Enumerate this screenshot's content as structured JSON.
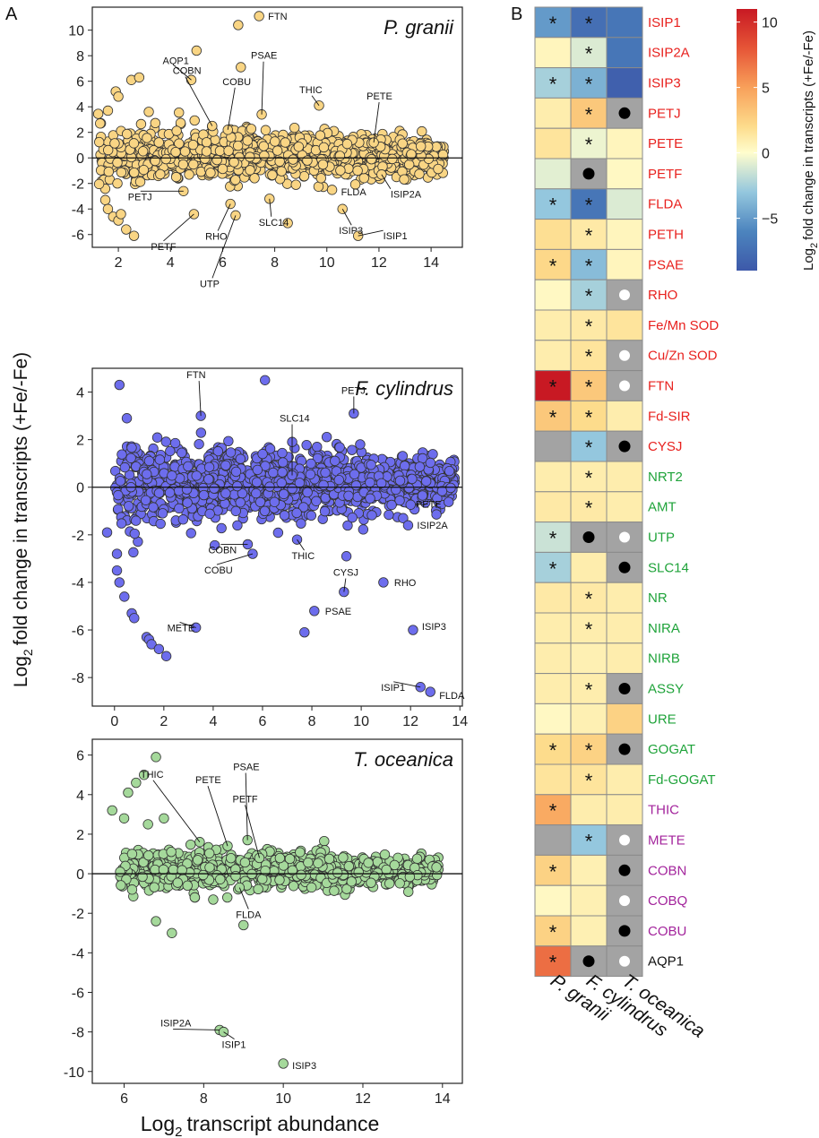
{
  "figure": {
    "panel_a_letter": "A",
    "panel_b_letter": "B",
    "ylabel_main": "fold change in transcripts (+Fe/-Fe)",
    "ylabel_prefix": "Log",
    "ylabel_sub": "2",
    "xlabel_main": "transcript abundance",
    "xlabel_prefix": "Log",
    "xlabel_sub": "2"
  },
  "chart_data": [
    {
      "type": "scatter",
      "title": "P. granii",
      "xlim": [
        1,
        15.2
      ],
      "ylim": [
        -7,
        11.8
      ],
      "xticks": [
        2,
        4,
        6,
        8,
        10,
        12,
        14
      ],
      "yticks": [
        -6,
        -4,
        -2,
        0,
        2,
        4,
        6,
        8,
        10
      ],
      "point_color": "#f9d584",
      "reference_line_y": 0,
      "cloud": {
        "count": 1100,
        "x_range": [
          1.2,
          14.5
        ],
        "y_spread": 1.7
      },
      "genes": [
        {
          "name": "FTN",
          "x": 7.4,
          "y": 11.1
        },
        {
          "name": "AQP1",
          "x": 4.8,
          "y": 6.1
        },
        {
          "name": "COBN",
          "x": 5.6,
          "y": 2.5
        },
        {
          "name": "COBU",
          "x": 6.2,
          "y": 2.2
        },
        {
          "name": "PSAE",
          "x": 7.5,
          "y": 3.4
        },
        {
          "name": "THIC",
          "x": 9.7,
          "y": 4.1
        },
        {
          "name": "PETE",
          "x": 11.8,
          "y": 1.2
        },
        {
          "name": "PETJ",
          "x": 4.5,
          "y": -2.6
        },
        {
          "name": "PETF",
          "x": 4.9,
          "y": -4.4
        },
        {
          "name": "RHO",
          "x": 6.3,
          "y": -3.6
        },
        {
          "name": "UTP",
          "x": 6.5,
          "y": -4.5
        },
        {
          "name": "SLC14",
          "x": 7.8,
          "y": -3.2
        },
        {
          "name": "FLDA",
          "x": 10.2,
          "y": -2.5
        },
        {
          "name": "ISIP3",
          "x": 10.6,
          "y": -4.0
        },
        {
          "name": "ISIP2A",
          "x": 12.1,
          "y": -1.3
        },
        {
          "name": "ISIP1",
          "x": 11.2,
          "y": -6.1
        }
      ],
      "extra_points": [
        {
          "x": 6.6,
          "y": 10.4
        },
        {
          "x": 5.0,
          "y": 8.4
        },
        {
          "x": 6.7,
          "y": 7.1
        },
        {
          "x": 2.5,
          "y": 6.1
        },
        {
          "x": 2.8,
          "y": 6.3
        },
        {
          "x": 1.9,
          "y": 5.2
        },
        {
          "x": 2.0,
          "y": 4.8
        },
        {
          "x": 1.6,
          "y": 3.7
        },
        {
          "x": 1.3,
          "y": 2.7
        },
        {
          "x": 1.5,
          "y": -3.3
        },
        {
          "x": 1.6,
          "y": -4.0
        },
        {
          "x": 1.8,
          "y": -4.6
        },
        {
          "x": 2.0,
          "y": -4.9
        },
        {
          "x": 2.3,
          "y": -5.6
        },
        {
          "x": 2.6,
          "y": -6.1
        },
        {
          "x": 2.1,
          "y": -4.4
        },
        {
          "x": 8.5,
          "y": -5.1
        }
      ]
    },
    {
      "type": "scatter",
      "title": "F. cylindrus",
      "xlim": [
        -0.9,
        14.1
      ],
      "ylim": [
        -9.2,
        5.0
      ],
      "xticks": [
        0,
        2,
        4,
        6,
        8,
        10,
        12,
        14
      ],
      "yticks": [
        -8,
        -6,
        -4,
        -2,
        0,
        2,
        4
      ],
      "point_color": "#6d6ded",
      "reference_line_y": 0,
      "cloud": {
        "count": 1400,
        "x_range": [
          0.0,
          13.8
        ],
        "y_spread": 1.25
      },
      "genes": [
        {
          "name": "FTN",
          "x": 3.5,
          "y": 3.0
        },
        {
          "name": "SLC14",
          "x": 7.2,
          "y": 0.5
        },
        {
          "name": "PETJ",
          "x": 9.7,
          "y": 3.1
        },
        {
          "name": "PETE",
          "x": 11.7,
          "y": -1.3
        },
        {
          "name": "ISIP2A",
          "x": 11.9,
          "y": -1.6
        },
        {
          "name": "COBN",
          "x": 5.4,
          "y": -2.4
        },
        {
          "name": "COBU",
          "x": 5.6,
          "y": -2.8
        },
        {
          "name": "THIC",
          "x": 7.4,
          "y": -2.2
        },
        {
          "name": "CYSJ",
          "x": 9.3,
          "y": -4.4
        },
        {
          "name": "RHO",
          "x": 10.9,
          "y": -4.0
        },
        {
          "name": "PSAE",
          "x": 8.1,
          "y": -5.2
        },
        {
          "name": "METE",
          "x": 3.3,
          "y": -5.9
        },
        {
          "name": "ISIP3",
          "x": 12.1,
          "y": -6.0
        },
        {
          "name": "ISIP1",
          "x": 12.4,
          "y": -8.4
        },
        {
          "name": "FLDA",
          "x": 12.8,
          "y": -8.6
        }
      ],
      "extra_points": [
        {
          "x": 0.2,
          "y": 4.3
        },
        {
          "x": 6.1,
          "y": 4.5
        },
        {
          "x": 0.5,
          "y": 2.9
        },
        {
          "x": 0.1,
          "y": -3.5
        },
        {
          "x": 0.2,
          "y": -4.0
        },
        {
          "x": 0.4,
          "y": -4.6
        },
        {
          "x": 0.7,
          "y": -5.3
        },
        {
          "x": 0.8,
          "y": -5.5
        },
        {
          "x": 1.3,
          "y": -6.3
        },
        {
          "x": 1.4,
          "y": -6.4
        },
        {
          "x": 1.5,
          "y": -6.6
        },
        {
          "x": 1.8,
          "y": -6.8
        },
        {
          "x": 2.1,
          "y": -7.1
        },
        {
          "x": 7.7,
          "y": -6.1
        },
        {
          "x": 9.4,
          "y": -2.9
        },
        {
          "x": -0.3,
          "y": -1.9
        },
        {
          "x": 0.1,
          "y": -2.8
        }
      ]
    },
    {
      "type": "scatter",
      "title": "T. oceanica",
      "xlim": [
        5.2,
        14.5
      ],
      "ylim": [
        -10.6,
        6.8
      ],
      "xticks": [
        6,
        8,
        10,
        12,
        14
      ],
      "yticks": [
        -10,
        -8,
        -6,
        -4,
        -2,
        0,
        2,
        4,
        6
      ],
      "point_color": "#a5d99b",
      "reference_line_y": 0,
      "cloud": {
        "count": 850,
        "x_range": [
          5.9,
          13.9
        ],
        "y_spread": 0.85
      },
      "genes": [
        {
          "name": "THIC",
          "x": 7.9,
          "y": 1.6
        },
        {
          "name": "PETE",
          "x": 8.6,
          "y": 1.4
        },
        {
          "name": "PSAE",
          "x": 9.1,
          "y": 1.7
        },
        {
          "name": "PETF",
          "x": 9.4,
          "y": 0.8
        },
        {
          "name": "FLDA",
          "x": 8.9,
          "y": -0.7
        },
        {
          "name": "ISIP2A",
          "x": 8.4,
          "y": -7.9
        },
        {
          "name": "ISIP1",
          "x": 8.5,
          "y": -8.0
        },
        {
          "name": "ISIP3",
          "x": 10.0,
          "y": -9.6
        }
      ],
      "extra_points": [
        {
          "x": 6.8,
          "y": 5.9
        },
        {
          "x": 6.5,
          "y": 5.0
        },
        {
          "x": 6.3,
          "y": 4.6
        },
        {
          "x": 6.1,
          "y": 4.1
        },
        {
          "x": 5.7,
          "y": 3.2
        },
        {
          "x": 6.0,
          "y": 2.8
        },
        {
          "x": 5.9,
          "y": 0.1
        },
        {
          "x": 6.2,
          "y": 1.0
        },
        {
          "x": 6.2,
          "y": -0.8
        },
        {
          "x": 6.8,
          "y": -2.4
        },
        {
          "x": 7.2,
          "y": -3.0
        },
        {
          "x": 9.0,
          "y": -2.6
        },
        {
          "x": 6.6,
          "y": 2.5
        },
        {
          "x": 7.0,
          "y": 2.8
        }
      ]
    },
    {
      "type": "heatmap",
      "columns": [
        "P. granii",
        "F. cylindrus",
        "T. oceanica"
      ],
      "colorbar_label": "fold change in transcripts (+Fe/-Fe)",
      "colorbar_label_prefix": "Log",
      "colorbar_label_sub": "2",
      "colorbar_ticks": [
        10,
        5,
        0,
        -5
      ],
      "color_range": [
        -9,
        11
      ],
      "missing_color": "#a3a3a3",
      "row_label_colors": {
        "iron": "#e8211e",
        "nitrogen": "#1fa33a",
        "vitamin": "#a3249c",
        "other": "#111111"
      },
      "rows": [
        {
          "gene": "ISIP1",
          "group": "iron",
          "values": [
            -5.0,
            -7.5,
            -7.0
          ],
          "marks": [
            "*",
            "*",
            ""
          ]
        },
        {
          "gene": "ISIP2A",
          "group": "iron",
          "values": [
            0.5,
            -1.0,
            -7.0
          ],
          "marks": [
            "",
            "*",
            ""
          ]
        },
        {
          "gene": "ISIP3",
          "group": "iron",
          "values": [
            -2.5,
            -4.0,
            -8.5
          ],
          "marks": [
            "*",
            "*",
            ""
          ]
        },
        {
          "gene": "PETJ",
          "group": "iron",
          "values": [
            1.0,
            3.0,
            null
          ],
          "marks": [
            "",
            "*",
            "black-dot"
          ]
        },
        {
          "gene": "PETE",
          "group": "iron",
          "values": [
            1.5,
            -0.5,
            0.5
          ],
          "marks": [
            "",
            "*",
            ""
          ]
        },
        {
          "gene": "PETF",
          "group": "iron",
          "values": [
            -0.8,
            null,
            0.3
          ],
          "marks": [
            "",
            "black-dot",
            ""
          ]
        },
        {
          "gene": "FLDA",
          "group": "iron",
          "values": [
            -3.0,
            -7.0,
            -1.0
          ],
          "marks": [
            "*",
            "*",
            ""
          ]
        },
        {
          "gene": "PETH",
          "group": "iron",
          "values": [
            1.8,
            1.2,
            0.5
          ],
          "marks": [
            "",
            "*",
            ""
          ]
        },
        {
          "gene": "PSAE",
          "group": "iron",
          "values": [
            2.2,
            -3.5,
            0.5
          ],
          "marks": [
            "*",
            "*",
            ""
          ]
        },
        {
          "gene": "RHO",
          "group": "iron",
          "values": [
            0.3,
            -2.5,
            null
          ],
          "marks": [
            "",
            "*",
            "white-dot"
          ]
        },
        {
          "gene": "Fe/Mn SOD",
          "group": "iron",
          "values": [
            1.0,
            1.2,
            1.5
          ],
          "marks": [
            "",
            "*",
            ""
          ]
        },
        {
          "gene": "Cu/Zn SOD",
          "group": "iron",
          "values": [
            1.0,
            1.5,
            null
          ],
          "marks": [
            "",
            "*",
            "white-dot"
          ]
        },
        {
          "gene": "FTN",
          "group": "iron",
          "values": [
            11.0,
            3.0,
            null
          ],
          "marks": [
            "*",
            "*",
            "white-dot"
          ]
        },
        {
          "gene": "Fd-SIR",
          "group": "iron",
          "values": [
            3.0,
            2.0,
            1.0
          ],
          "marks": [
            "*",
            "*",
            ""
          ]
        },
        {
          "gene": "CYSJ",
          "group": "iron",
          "values": [
            null,
            -3.0,
            null
          ],
          "marks": [
            "",
            "*",
            "black-dot"
          ]
        },
        {
          "gene": "NRT2",
          "group": "nitrogen",
          "values": [
            1.0,
            1.0,
            1.0
          ],
          "marks": [
            "",
            "*",
            ""
          ]
        },
        {
          "gene": "AMT",
          "group": "nitrogen",
          "values": [
            1.2,
            1.2,
            1.0
          ],
          "marks": [
            "",
            "*",
            ""
          ]
        },
        {
          "gene": "UTP",
          "group": "nitrogen",
          "values": [
            -1.5,
            null,
            null
          ],
          "marks": [
            "*",
            "black-dot",
            "white-dot"
          ]
        },
        {
          "gene": "SLC14",
          "group": "nitrogen",
          "values": [
            -2.5,
            1.0,
            null
          ],
          "marks": [
            "*",
            "",
            "black-dot"
          ]
        },
        {
          "gene": "NR",
          "group": "nitrogen",
          "values": [
            1.2,
            1.2,
            1.0
          ],
          "marks": [
            "",
            "*",
            ""
          ]
        },
        {
          "gene": "NIRA",
          "group": "nitrogen",
          "values": [
            1.0,
            1.0,
            1.0
          ],
          "marks": [
            "",
            "*",
            ""
          ]
        },
        {
          "gene": "NIRB",
          "group": "nitrogen",
          "values": [
            1.0,
            0.8,
            1.0
          ],
          "marks": [
            "",
            "",
            ""
          ]
        },
        {
          "gene": "ASSY",
          "group": "nitrogen",
          "values": [
            1.0,
            1.0,
            null
          ],
          "marks": [
            "",
            "*",
            "black-dot"
          ]
        },
        {
          "gene": "URE",
          "group": "nitrogen",
          "values": [
            0.3,
            0.8,
            2.5
          ],
          "marks": [
            "",
            "",
            ""
          ]
        },
        {
          "gene": "GOGAT",
          "group": "nitrogen",
          "values": [
            2.0,
            2.5,
            null
          ],
          "marks": [
            "*",
            "*",
            "black-dot"
          ]
        },
        {
          "gene": "Fd-GOGAT",
          "group": "nitrogen",
          "values": [
            1.5,
            1.5,
            1.0
          ],
          "marks": [
            "",
            "*",
            ""
          ]
        },
        {
          "gene": "THIC",
          "group": "vitamin",
          "values": [
            4.5,
            1.0,
            1.0
          ],
          "marks": [
            "*",
            "",
            ""
          ]
        },
        {
          "gene": "METE",
          "group": "vitamin",
          "values": [
            null,
            -3.0,
            null
          ],
          "marks": [
            "",
            "*",
            "white-dot"
          ]
        },
        {
          "gene": "COBN",
          "group": "vitamin",
          "values": [
            2.5,
            0.8,
            null
          ],
          "marks": [
            "*",
            "",
            "black-dot"
          ]
        },
        {
          "gene": "COBQ",
          "group": "vitamin",
          "values": [
            0.3,
            0.8,
            null
          ],
          "marks": [
            "",
            "",
            "white-dot"
          ]
        },
        {
          "gene": "COBU",
          "group": "vitamin",
          "values": [
            2.5,
            0.8,
            null
          ],
          "marks": [
            "*",
            "",
            "black-dot"
          ]
        },
        {
          "gene": "AQP1",
          "group": "other",
          "values": [
            7.0,
            null,
            null
          ],
          "marks": [
            "*",
            "black-dot",
            "white-dot"
          ]
        }
      ]
    }
  ]
}
